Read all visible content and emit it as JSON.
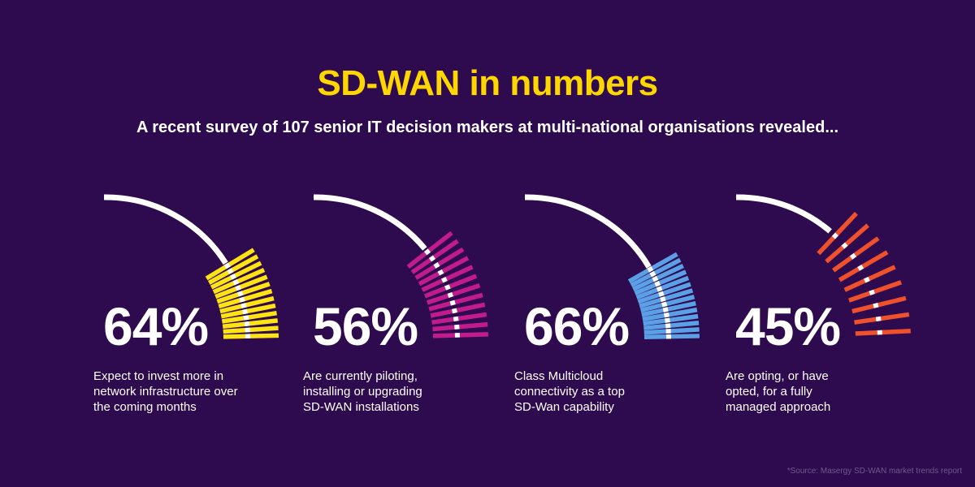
{
  "header": {
    "title": "SD-WAN in numbers",
    "subtitle": "A recent survey of 107 senior IT decision makers at multi-national organisations revealed..."
  },
  "chart_data": [
    {
      "type": "gauge",
      "value": 64,
      "value_label": "64%",
      "color": "#ffe312",
      "description": [
        "Expect to invest more in",
        "network infrastructure over",
        "the coming months"
      ]
    },
    {
      "type": "gauge",
      "value": 56,
      "value_label": "56%",
      "color": "#c21b8d",
      "description": [
        "Are currently piloting,",
        "installing or upgrading",
        "SD-WAN installations"
      ]
    },
    {
      "type": "gauge",
      "value": 66,
      "value_label": "66%",
      "color": "#5b9fe6",
      "description": [
        "Class Multicloud",
        "connectivity as a top",
        "SD-Wan capability"
      ]
    },
    {
      "type": "gauge",
      "value": 45,
      "value_label": "45%",
      "color": "#f0512d",
      "description": [
        "Are opting, or have",
        "opted, for a fully",
        "managed approach"
      ]
    }
  ],
  "footer": {
    "source": "*Source: Masergy SD-WAN market trends report"
  }
}
